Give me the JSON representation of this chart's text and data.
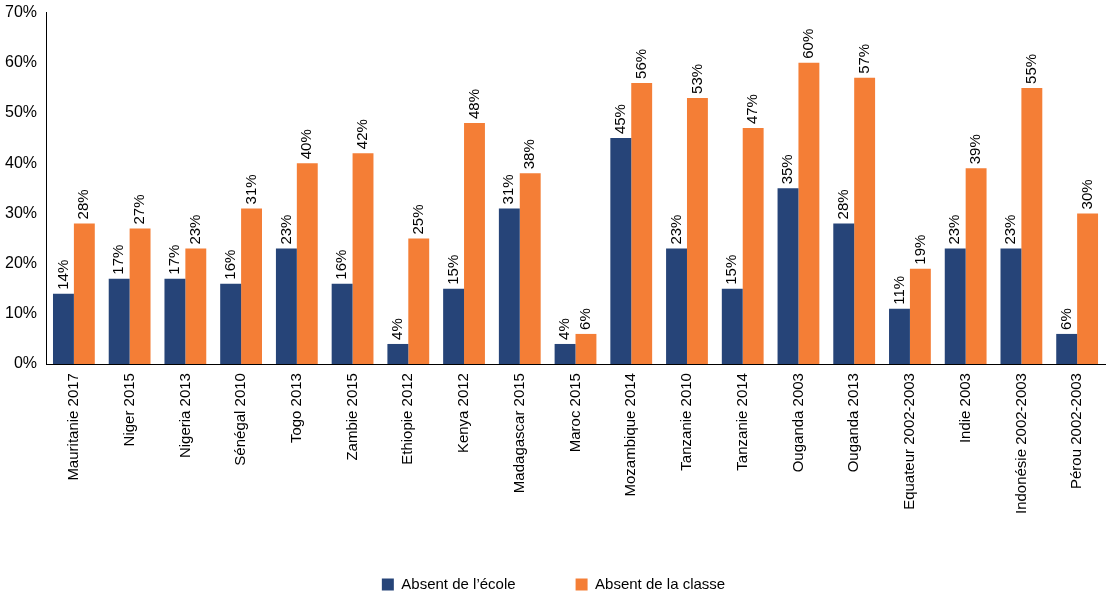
{
  "chart_data": {
    "type": "bar",
    "categories": [
      "Mauritanie 2017",
      "Niger 2015",
      "Nigeria 2013",
      "Sénégal 2010",
      "Togo 2013",
      "Zambie 2015",
      "Ethiopie 2012",
      "Kenya 2012",
      "Madagascar 2015",
      "Maroc 2015",
      "Mozambique 2014",
      "Tanzanie 2010",
      "Tanzanie 2014",
      "Ouganda 2003",
      "Ouganda 2013",
      "Equateur 2002-2003",
      "Indie 2003",
      "Indonésie 2002-2003",
      "Pérou 2002-2003"
    ],
    "series": [
      {
        "name": "Absent de l’école",
        "color": "#264478",
        "values": [
          14,
          17,
          17,
          16,
          23,
          16,
          4,
          15,
          31,
          4,
          45,
          23,
          15,
          35,
          28,
          11,
          23,
          23,
          6
        ],
        "value_labels": [
          "14%",
          "17%",
          "17%",
          "16%",
          "23%",
          "16%",
          "4%",
          "15%",
          "31%",
          "4%",
          "45%",
          "23%",
          "15%",
          "35%",
          "28%",
          "11%",
          "23%",
          "23%",
          "6%"
        ]
      },
      {
        "name": "Absent de la classe",
        "color": "#f47e36",
        "values": [
          28,
          27,
          23,
          31,
          40,
          42,
          25,
          48,
          38,
          6,
          56,
          53,
          47,
          60,
          57,
          19,
          39,
          55,
          30
        ],
        "value_labels": [
          "28%",
          "27%",
          "23%",
          "31%",
          "40%",
          "42%",
          "25%",
          "48%",
          "38%",
          "6%",
          "56%",
          "53%",
          "47%",
          "60%",
          "57%",
          "19%",
          "39%",
          "55%",
          "30%"
        ]
      }
    ],
    "ylim": [
      0,
      70
    ],
    "yticks": [
      {
        "value": 0,
        "label": "0%"
      },
      {
        "value": 10,
        "label": "10%"
      },
      {
        "value": 20,
        "label": "20%"
      },
      {
        "value": 30,
        "label": "30%"
      },
      {
        "value": 40,
        "label": "40%"
      },
      {
        "value": 50,
        "label": "50%"
      },
      {
        "value": 60,
        "label": "60%"
      },
      {
        "value": 70,
        "label": "70%"
      }
    ],
    "grid": false,
    "legend": "bottom"
  }
}
